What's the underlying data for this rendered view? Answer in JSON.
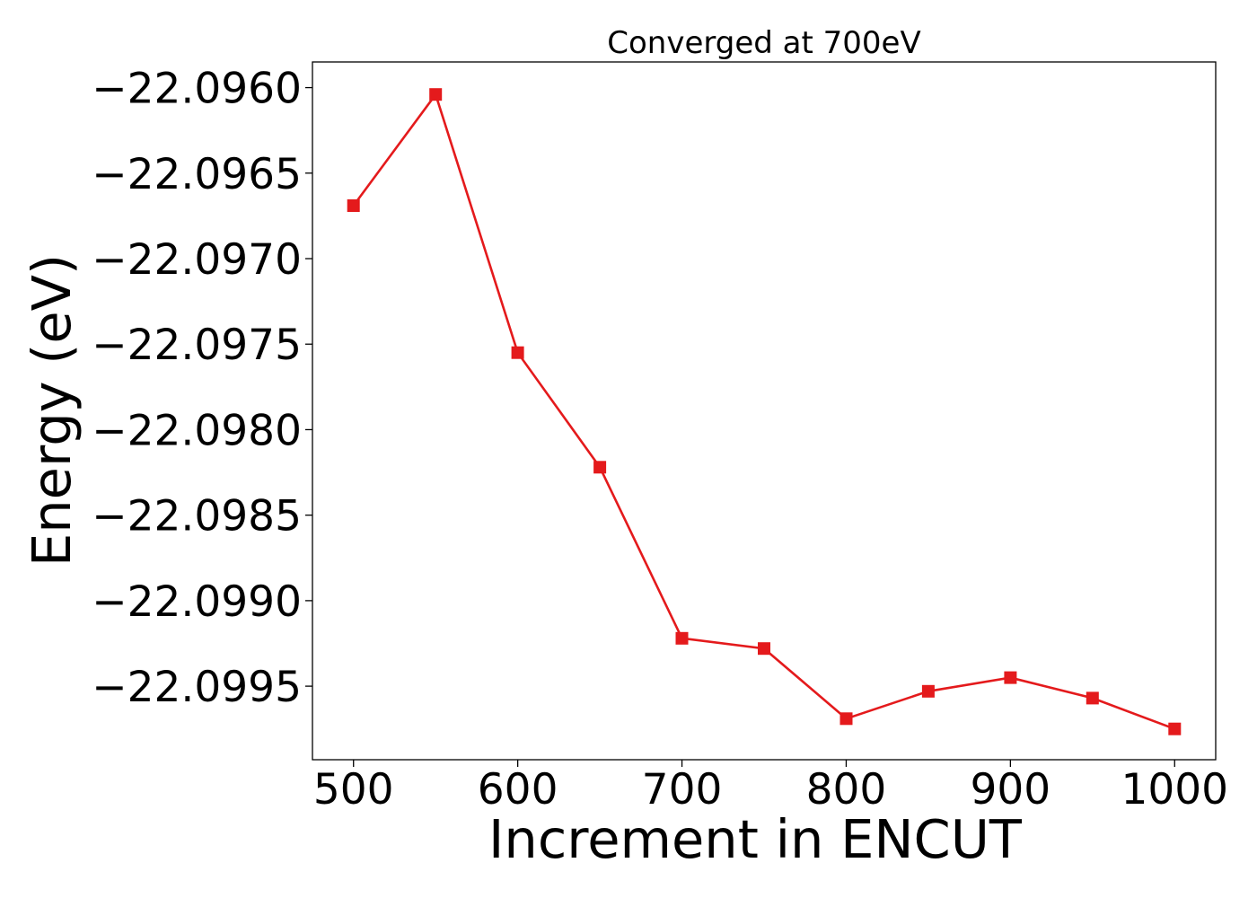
{
  "chart_data": {
    "type": "line",
    "title": "Converged at 700eV",
    "xlabel": "Increment in ENCUT",
    "ylabel": "Energy (eV)",
    "x": [
      500,
      550,
      600,
      650,
      700,
      750,
      800,
      850,
      900,
      950,
      1000
    ],
    "series": [
      {
        "name": "",
        "values": [
          -22.09669,
          -22.09604,
          -22.09755,
          -22.09822,
          -22.09922,
          -22.09928,
          -22.09969,
          -22.09953,
          -22.09945,
          -22.09957,
          -22.09975
        ],
        "color": "#e41a1c",
        "marker": "square"
      }
    ],
    "xlim": [
      475,
      1025
    ],
    "ylim": [
      -22.09993,
      -22.09585
    ],
    "xticks": [
      500,
      600,
      700,
      800,
      900,
      1000
    ],
    "xtick_labels": [
      "500",
      "600",
      "700",
      "800",
      "900",
      "1000"
    ],
    "yticks": [
      -22.096,
      -22.0965,
      -22.097,
      -22.0975,
      -22.098,
      -22.0985,
      -22.099,
      -22.0995
    ],
    "ytick_labels": [
      "−22.0960",
      "−22.0965",
      "−22.0970",
      "−22.0975",
      "−22.0980",
      "−22.0985",
      "−22.0990",
      "−22.0995"
    ],
    "grid": false,
    "legend": false
  }
}
